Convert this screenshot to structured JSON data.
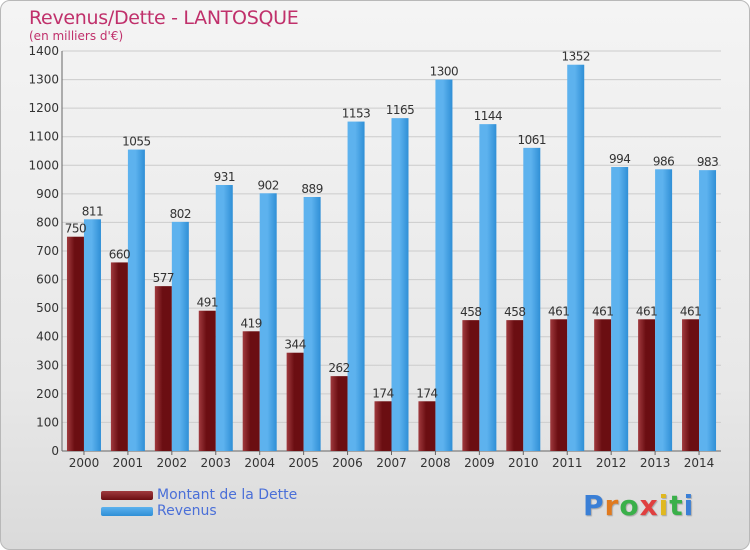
{
  "title": "Revenus/Dette - LANTOSQUE",
  "subtitle": "(en milliers d'€)",
  "colors": {
    "debt": "#6b0e12",
    "debt_light": "#a03a3e",
    "revenue": "#2f8fd6",
    "revenue_light": "#5db2ee",
    "accent": "#c0306b",
    "legend_text": "#4a6fd8"
  },
  "legend": [
    {
      "label": "Montant de la Dette",
      "icon": "dark-red-swatch"
    },
    {
      "label": "Revenus",
      "icon": "blue-swatch"
    }
  ],
  "logo": {
    "text": "Proxiti",
    "icon": "proxiti-logo"
  },
  "chart_data": {
    "type": "bar",
    "title": "Revenus/Dette - LANTOSQUE",
    "subtitle": "(en milliers d'€)",
    "categories": [
      "2000",
      "2001",
      "2002",
      "2003",
      "2004",
      "2005",
      "2006",
      "2007",
      "2008",
      "2009",
      "2010",
      "2011",
      "2012",
      "2013",
      "2014"
    ],
    "series": [
      {
        "name": "Montant de la Dette",
        "values": [
          750,
          660,
          577,
          491,
          419,
          344,
          262,
          174,
          174,
          458,
          458,
          461,
          461,
          461,
          461
        ]
      },
      {
        "name": "Revenus",
        "values": [
          811,
          1055,
          802,
          931,
          902,
          889,
          1153,
          1165,
          1300,
          1144,
          1061,
          1352,
          994,
          986,
          983
        ]
      }
    ],
    "ylim": [
      0,
      1400
    ],
    "yticks": [
      0,
      100,
      200,
      300,
      400,
      500,
      600,
      700,
      800,
      900,
      1000,
      1100,
      1200,
      1300,
      1400
    ],
    "grid": true,
    "legend_position": "bottom-left"
  }
}
